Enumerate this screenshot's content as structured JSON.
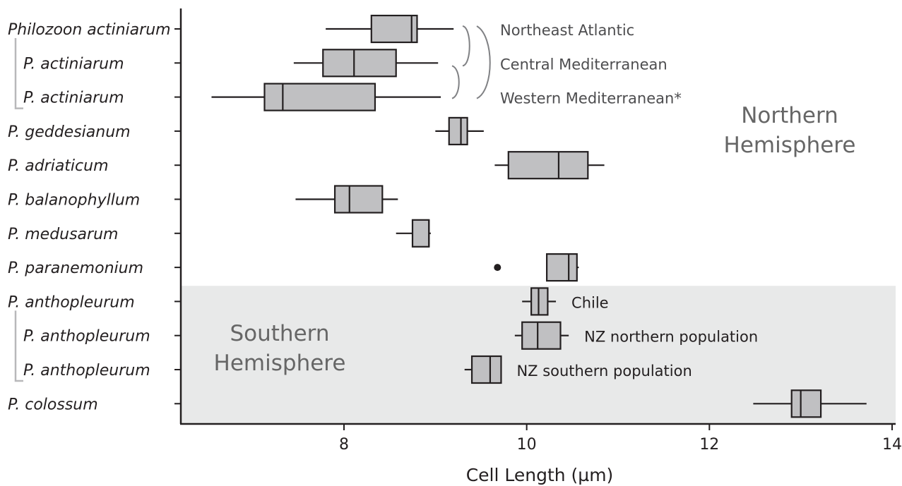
{
  "chart_data": {
    "type": "boxplot",
    "xlabel": "Cell Length (µm)",
    "xlim": [
      6.2,
      14.1
    ],
    "x_ticks": [
      8,
      10,
      12,
      14
    ],
    "categories": [
      "Philozoon actiniarum",
      "P. actiniarum",
      "P. actiniarum",
      "P. geddesianum",
      "P. adriaticum",
      "P. balanophyllum",
      "P. medusarum",
      "P. paranemonium",
      "P. anthopleurum",
      "P. anthopleurum",
      "P. anthopleurum",
      "P. colossum"
    ],
    "boxes": [
      {
        "min": 7.8,
        "q1": 8.3,
        "median": 8.74,
        "q3": 8.8,
        "max": 9.2,
        "outliers": []
      },
      {
        "min": 7.45,
        "q1": 7.77,
        "median": 8.11,
        "q3": 8.57,
        "max": 9.03,
        "outliers": []
      },
      {
        "min": 6.55,
        "q1": 7.13,
        "median": 7.33,
        "q3": 8.34,
        "max": 9.06,
        "outliers": []
      },
      {
        "min": 9.0,
        "q1": 9.15,
        "median": 9.28,
        "q3": 9.35,
        "max": 9.53,
        "outliers": []
      },
      {
        "min": 9.65,
        "q1": 9.8,
        "median": 10.35,
        "q3": 10.67,
        "max": 10.85,
        "outliers": []
      },
      {
        "min": 7.47,
        "q1": 7.9,
        "median": 8.06,
        "q3": 8.42,
        "max": 8.59,
        "outliers": []
      },
      {
        "min": 8.57,
        "q1": 8.75,
        "median": 8.93,
        "q3": 8.93,
        "max": 8.95,
        "outliers": []
      },
      {
        "min": 10.22,
        "q1": 10.22,
        "median": 10.46,
        "q3": 10.55,
        "max": 10.57,
        "outliers": [
          9.68
        ]
      },
      {
        "min": 9.95,
        "q1": 10.05,
        "median": 10.13,
        "q3": 10.23,
        "max": 10.32,
        "outliers": []
      },
      {
        "min": 9.87,
        "q1": 9.95,
        "median": 10.12,
        "q3": 10.37,
        "max": 10.46,
        "outliers": []
      },
      {
        "min": 9.32,
        "q1": 9.4,
        "median": 9.6,
        "q3": 9.72,
        "max": 9.72,
        "outliers": []
      },
      {
        "min": 12.48,
        "q1": 12.9,
        "median": 13.0,
        "q3": 13.22,
        "max": 13.72,
        "outliers": []
      }
    ],
    "population_labels": [
      {
        "row": 0,
        "text": "Northeast Atlantic"
      },
      {
        "row": 1,
        "text": "Central Mediterranean"
      },
      {
        "row": 2,
        "text": "Western Mediterranean*"
      },
      {
        "row": 8,
        "text": "Chile"
      },
      {
        "row": 9,
        "text": "NZ northern population"
      },
      {
        "row": 10,
        "text": "NZ southern population"
      }
    ],
    "regions": [
      {
        "name": "Northern Hemisphere",
        "lines": [
          "Northern",
          "Hemisphere"
        ],
        "rows": [
          0,
          7
        ]
      },
      {
        "name": "Southern Hemisphere",
        "lines": [
          "Southern",
          "Hemisphere"
        ],
        "rows": [
          8,
          11
        ],
        "shaded": true
      }
    ],
    "colors": {
      "box_fill": "#c0c0c2",
      "stroke": "#231f20",
      "shade": "#e8e9e9",
      "bracket": "#808184",
      "group_bar": "#b8b8ba"
    },
    "grid": false
  }
}
